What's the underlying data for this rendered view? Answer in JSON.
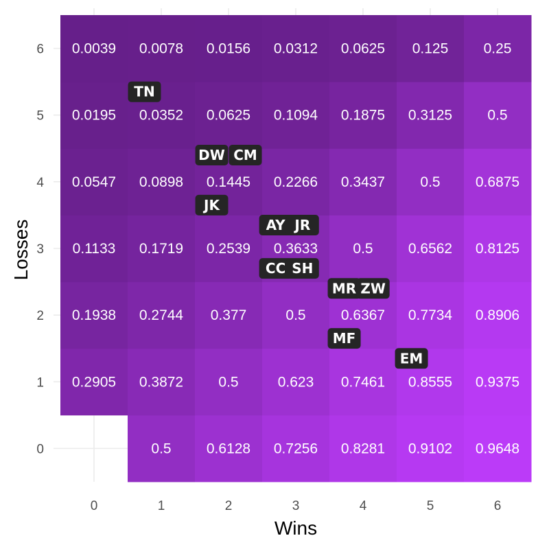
{
  "chart_data": {
    "type": "heatmap",
    "title": "",
    "xlabel": "Wins",
    "ylabel": "Losses",
    "x_ticks": [
      "0",
      "1",
      "2",
      "3",
      "4",
      "5",
      "6"
    ],
    "y_ticks": [
      "0",
      "1",
      "2",
      "3",
      "4",
      "5",
      "6"
    ],
    "xlim": [
      -0.5,
      6.5
    ],
    "ylim": [
      -0.5,
      6.5
    ],
    "grid": true,
    "color_low": "#661f8a",
    "color_high": "#be3cfc",
    "cells": [
      {
        "wins": 1,
        "losses": 0,
        "value": 0.5,
        "label": "0.5"
      },
      {
        "wins": 2,
        "losses": 0,
        "value": 0.6128,
        "label": "0.6128"
      },
      {
        "wins": 3,
        "losses": 0,
        "value": 0.7256,
        "label": "0.7256"
      },
      {
        "wins": 4,
        "losses": 0,
        "value": 0.8281,
        "label": "0.8281"
      },
      {
        "wins": 5,
        "losses": 0,
        "value": 0.9102,
        "label": "0.9102"
      },
      {
        "wins": 6,
        "losses": 0,
        "value": 0.9648,
        "label": "0.9648"
      },
      {
        "wins": 0,
        "losses": 1,
        "value": 0.2905,
        "label": "0.2905"
      },
      {
        "wins": 1,
        "losses": 1,
        "value": 0.3872,
        "label": "0.3872"
      },
      {
        "wins": 2,
        "losses": 1,
        "value": 0.5,
        "label": "0.5"
      },
      {
        "wins": 3,
        "losses": 1,
        "value": 0.623,
        "label": "0.623"
      },
      {
        "wins": 4,
        "losses": 1,
        "value": 0.7461,
        "label": "0.7461"
      },
      {
        "wins": 5,
        "losses": 1,
        "value": 0.8555,
        "label": "0.8555"
      },
      {
        "wins": 6,
        "losses": 1,
        "value": 0.9375,
        "label": "0.9375"
      },
      {
        "wins": 0,
        "losses": 2,
        "value": 0.1938,
        "label": "0.1938"
      },
      {
        "wins": 1,
        "losses": 2,
        "value": 0.2744,
        "label": "0.2744"
      },
      {
        "wins": 2,
        "losses": 2,
        "value": 0.377,
        "label": "0.377"
      },
      {
        "wins": 3,
        "losses": 2,
        "value": 0.5,
        "label": "0.5"
      },
      {
        "wins": 4,
        "losses": 2,
        "value": 0.6367,
        "label": "0.6367"
      },
      {
        "wins": 5,
        "losses": 2,
        "value": 0.7734,
        "label": "0.7734"
      },
      {
        "wins": 6,
        "losses": 2,
        "value": 0.8906,
        "label": "0.8906"
      },
      {
        "wins": 0,
        "losses": 3,
        "value": 0.1133,
        "label": "0.1133"
      },
      {
        "wins": 1,
        "losses": 3,
        "value": 0.1719,
        "label": "0.1719"
      },
      {
        "wins": 2,
        "losses": 3,
        "value": 0.2539,
        "label": "0.2539"
      },
      {
        "wins": 3,
        "losses": 3,
        "value": 0.3633,
        "label": "0.3633"
      },
      {
        "wins": 4,
        "losses": 3,
        "value": 0.5,
        "label": "0.5"
      },
      {
        "wins": 5,
        "losses": 3,
        "value": 0.6562,
        "label": "0.6562"
      },
      {
        "wins": 6,
        "losses": 3,
        "value": 0.8125,
        "label": "0.8125"
      },
      {
        "wins": 0,
        "losses": 4,
        "value": 0.0547,
        "label": "0.0547"
      },
      {
        "wins": 1,
        "losses": 4,
        "value": 0.0898,
        "label": "0.0898"
      },
      {
        "wins": 2,
        "losses": 4,
        "value": 0.1445,
        "label": "0.1445"
      },
      {
        "wins": 3,
        "losses": 4,
        "value": 0.2266,
        "label": "0.2266"
      },
      {
        "wins": 4,
        "losses": 4,
        "value": 0.3437,
        "label": "0.3437"
      },
      {
        "wins": 5,
        "losses": 4,
        "value": 0.5,
        "label": "0.5"
      },
      {
        "wins": 6,
        "losses": 4,
        "value": 0.6875,
        "label": "0.6875"
      },
      {
        "wins": 0,
        "losses": 5,
        "value": 0.0195,
        "label": "0.0195"
      },
      {
        "wins": 1,
        "losses": 5,
        "value": 0.0352,
        "label": "0.0352"
      },
      {
        "wins": 2,
        "losses": 5,
        "value": 0.0625,
        "label": "0.0625"
      },
      {
        "wins": 3,
        "losses": 5,
        "value": 0.1094,
        "label": "0.1094"
      },
      {
        "wins": 4,
        "losses": 5,
        "value": 0.1875,
        "label": "0.1875"
      },
      {
        "wins": 5,
        "losses": 5,
        "value": 0.3125,
        "label": "0.3125"
      },
      {
        "wins": 6,
        "losses": 5,
        "value": 0.5,
        "label": "0.5"
      },
      {
        "wins": 0,
        "losses": 6,
        "value": 0.0039,
        "label": "0.0039"
      },
      {
        "wins": 1,
        "losses": 6,
        "value": 0.0078,
        "label": "0.0078"
      },
      {
        "wins": 2,
        "losses": 6,
        "value": 0.0156,
        "label": "0.0156"
      },
      {
        "wins": 3,
        "losses": 6,
        "value": 0.0312,
        "label": "0.0312"
      },
      {
        "wins": 4,
        "losses": 6,
        "value": 0.0625,
        "label": "0.0625"
      },
      {
        "wins": 5,
        "losses": 6,
        "value": 0.125,
        "label": "0.125"
      },
      {
        "wins": 6,
        "losses": 6,
        "value": 0.25,
        "label": "0.25"
      }
    ],
    "annotations": [
      {
        "text": "TN",
        "wins": 0.75,
        "losses": 5.35
      },
      {
        "text": "DW",
        "wins": 1.75,
        "losses": 4.4
      },
      {
        "text": "CM",
        "wins": 2.25,
        "losses": 4.4
      },
      {
        "text": "JK",
        "wins": 1.75,
        "losses": 3.65
      },
      {
        "text": "AY",
        "wins": 2.7,
        "losses": 3.35
      },
      {
        "text": "JR",
        "wins": 3.1,
        "losses": 3.35
      },
      {
        "text": "CC",
        "wins": 2.7,
        "losses": 2.7
      },
      {
        "text": "SH",
        "wins": 3.1,
        "losses": 2.7
      },
      {
        "text": "MR",
        "wins": 3.72,
        "losses": 2.4
      },
      {
        "text": "ZW",
        "wins": 4.15,
        "losses": 2.4
      },
      {
        "text": "MF",
        "wins": 3.72,
        "losses": 1.65
      },
      {
        "text": "EM",
        "wins": 4.72,
        "losses": 1.35
      }
    ]
  }
}
